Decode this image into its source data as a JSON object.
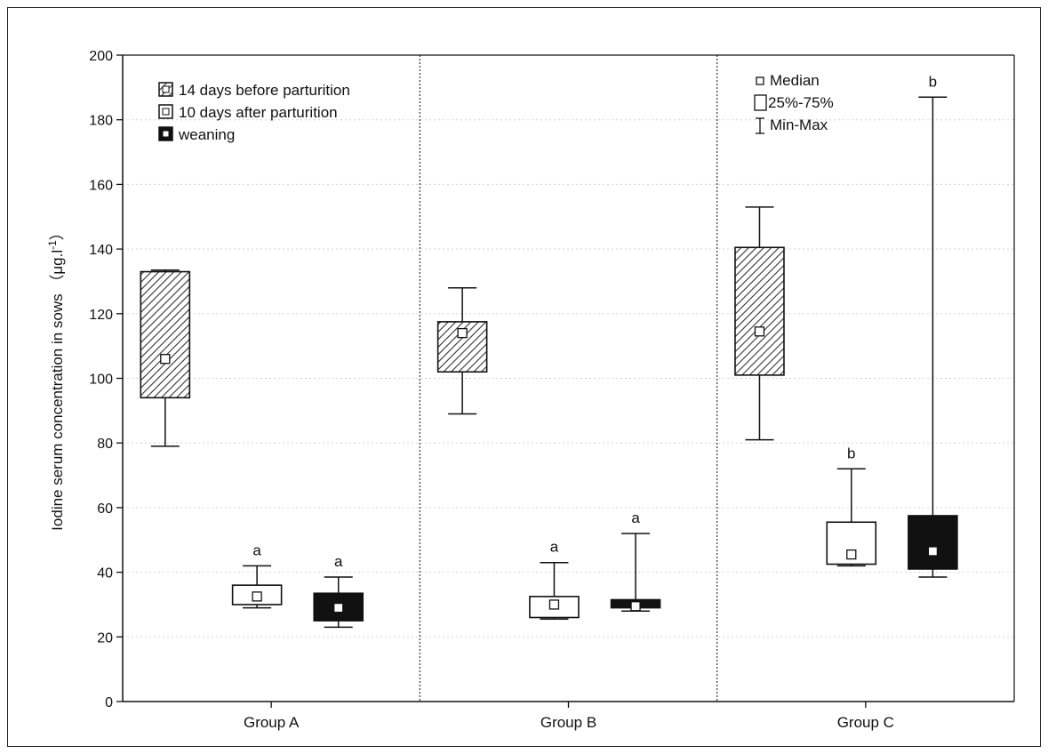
{
  "chart_data": {
    "type": "box",
    "ylabel": "Iodine serum concentration in sows",
    "yunit_base": "（μg.l",
    "yunit_sup": "-1",
    "yunit_end": "）",
    "ylim": [
      0,
      200
    ],
    "yticks": [
      0,
      20,
      40,
      60,
      80,
      100,
      120,
      140,
      160,
      180,
      200
    ],
    "categories": [
      "Group A",
      "Group B",
      "Group C"
    ],
    "grid": true,
    "legend_position": "top-left",
    "series": [
      {
        "name": "14 days before parturition",
        "fill": "hatched",
        "boxes": [
          {
            "min": 79,
            "q1": 94,
            "median": 106,
            "q3": 133,
            "max": 133.5,
            "annotation": ""
          },
          {
            "min": 89,
            "q1": 102,
            "median": 114,
            "q3": 117.5,
            "max": 128,
            "annotation": ""
          },
          {
            "min": 81,
            "q1": 101,
            "median": 114.5,
            "q3": 140.5,
            "max": 153,
            "annotation": ""
          }
        ]
      },
      {
        "name": "10 days after parturition",
        "fill": "white",
        "boxes": [
          {
            "min": 29,
            "q1": 30,
            "median": 32.5,
            "q3": 36,
            "max": 42,
            "annotation": "a"
          },
          {
            "min": 25.5,
            "q1": 26,
            "median": 30,
            "q3": 32.5,
            "max": 43,
            "annotation": "a"
          },
          {
            "min": 42,
            "q1": 42.5,
            "median": 45.5,
            "q3": 55.5,
            "max": 72,
            "annotation": "b"
          }
        ]
      },
      {
        "name": "weaning",
        "fill": "black",
        "boxes": [
          {
            "min": 23,
            "q1": 25,
            "median": 29,
            "q3": 33.5,
            "max": 38.5,
            "annotation": "a"
          },
          {
            "min": 28,
            "q1": 29,
            "median": 29.5,
            "q3": 31.5,
            "max": 52,
            "annotation": "a"
          },
          {
            "min": 38.5,
            "q1": 41,
            "median": 46.5,
            "q3": 57.5,
            "max": 187,
            "annotation": "b"
          }
        ]
      }
    ],
    "key_legend": [
      "Median",
      "25%-75%",
      "Min-Max"
    ]
  }
}
